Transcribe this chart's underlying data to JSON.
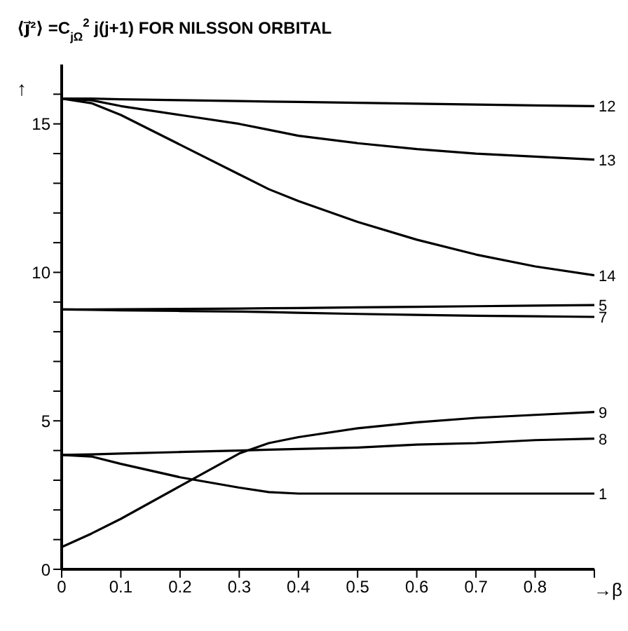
{
  "chart_data": {
    "type": "line",
    "title": "⟨j⃗²⟩ =C$_{jΩ}$$^{2}$ j(j+1) FOR NILSSON ORBITAL",
    "xlabel": "→β",
    "ylabel": "↑",
    "x": [
      0,
      0.05,
      0.1,
      0.2,
      0.3,
      0.35,
      0.4,
      0.5,
      0.6,
      0.7,
      0.8,
      0.9
    ],
    "series": [
      {
        "name": "12",
        "color": "#000000",
        "values": [
          15.85,
          15.85,
          15.83,
          15.8,
          15.77,
          15.75,
          15.74,
          15.71,
          15.68,
          15.65,
          15.62,
          15.6
        ]
      },
      {
        "name": "13",
        "color": "#000000",
        "values": [
          15.85,
          15.8,
          15.6,
          15.3,
          15.0,
          14.8,
          14.6,
          14.35,
          14.15,
          14.0,
          13.9,
          13.8
        ]
      },
      {
        "name": "14",
        "color": "#000000",
        "values": [
          15.85,
          15.7,
          15.3,
          14.3,
          13.3,
          12.8,
          12.4,
          11.7,
          11.1,
          10.6,
          10.2,
          9.9
        ]
      },
      {
        "name": "5",
        "color": "#000000",
        "values": [
          8.75,
          8.75,
          8.76,
          8.77,
          8.78,
          8.79,
          8.8,
          8.82,
          8.84,
          8.86,
          8.88,
          8.9
        ]
      },
      {
        "name": "7",
        "color": "#000000",
        "values": [
          8.75,
          8.74,
          8.72,
          8.7,
          8.68,
          8.66,
          8.64,
          8.6,
          8.57,
          8.54,
          8.52,
          8.5
        ]
      },
      {
        "name": "9",
        "color": "#000000",
        "values": [
          0.75,
          1.2,
          1.7,
          2.8,
          3.9,
          4.25,
          4.45,
          4.75,
          4.95,
          5.1,
          5.2,
          5.3
        ]
      },
      {
        "name": "8",
        "color": "#000000",
        "values": [
          3.85,
          3.87,
          3.9,
          3.95,
          4.0,
          4.03,
          4.05,
          4.1,
          4.2,
          4.25,
          4.35,
          4.4
        ]
      },
      {
        "name": "1",
        "color": "#000000",
        "values": [
          3.85,
          3.8,
          3.55,
          3.1,
          2.75,
          2.6,
          2.55,
          2.55,
          2.55,
          2.55,
          2.55,
          2.55
        ]
      }
    ],
    "xlim": [
      0,
      0.9
    ],
    "xticks": [
      0,
      0.1,
      0.2,
      0.3,
      0.4,
      0.5,
      0.6,
      0.7,
      0.8,
      {
        "value": 0.9,
        "label": null
      }
    ],
    "ylim": [
      0,
      17
    ],
    "yticks": [
      0,
      {
        "value": 1,
        "label": null
      },
      {
        "value": 2,
        "label": null
      },
      {
        "value": 3,
        "label": null
      },
      {
        "value": 4,
        "label": null
      },
      5,
      {
        "value": 6,
        "label": null
      },
      {
        "value": 7,
        "label": null
      },
      {
        "value": 8,
        "label": null
      },
      {
        "value": 9,
        "label": null
      },
      10,
      {
        "value": 11,
        "label": null
      },
      {
        "value": 12,
        "label": null
      },
      {
        "value": 13,
        "label": null
      },
      {
        "value": 14,
        "label": null
      },
      15,
      {
        "value": 16,
        "label": null
      }
    ],
    "grid": false,
    "legend": false,
    "marker": "none",
    "line_style": "solid"
  }
}
